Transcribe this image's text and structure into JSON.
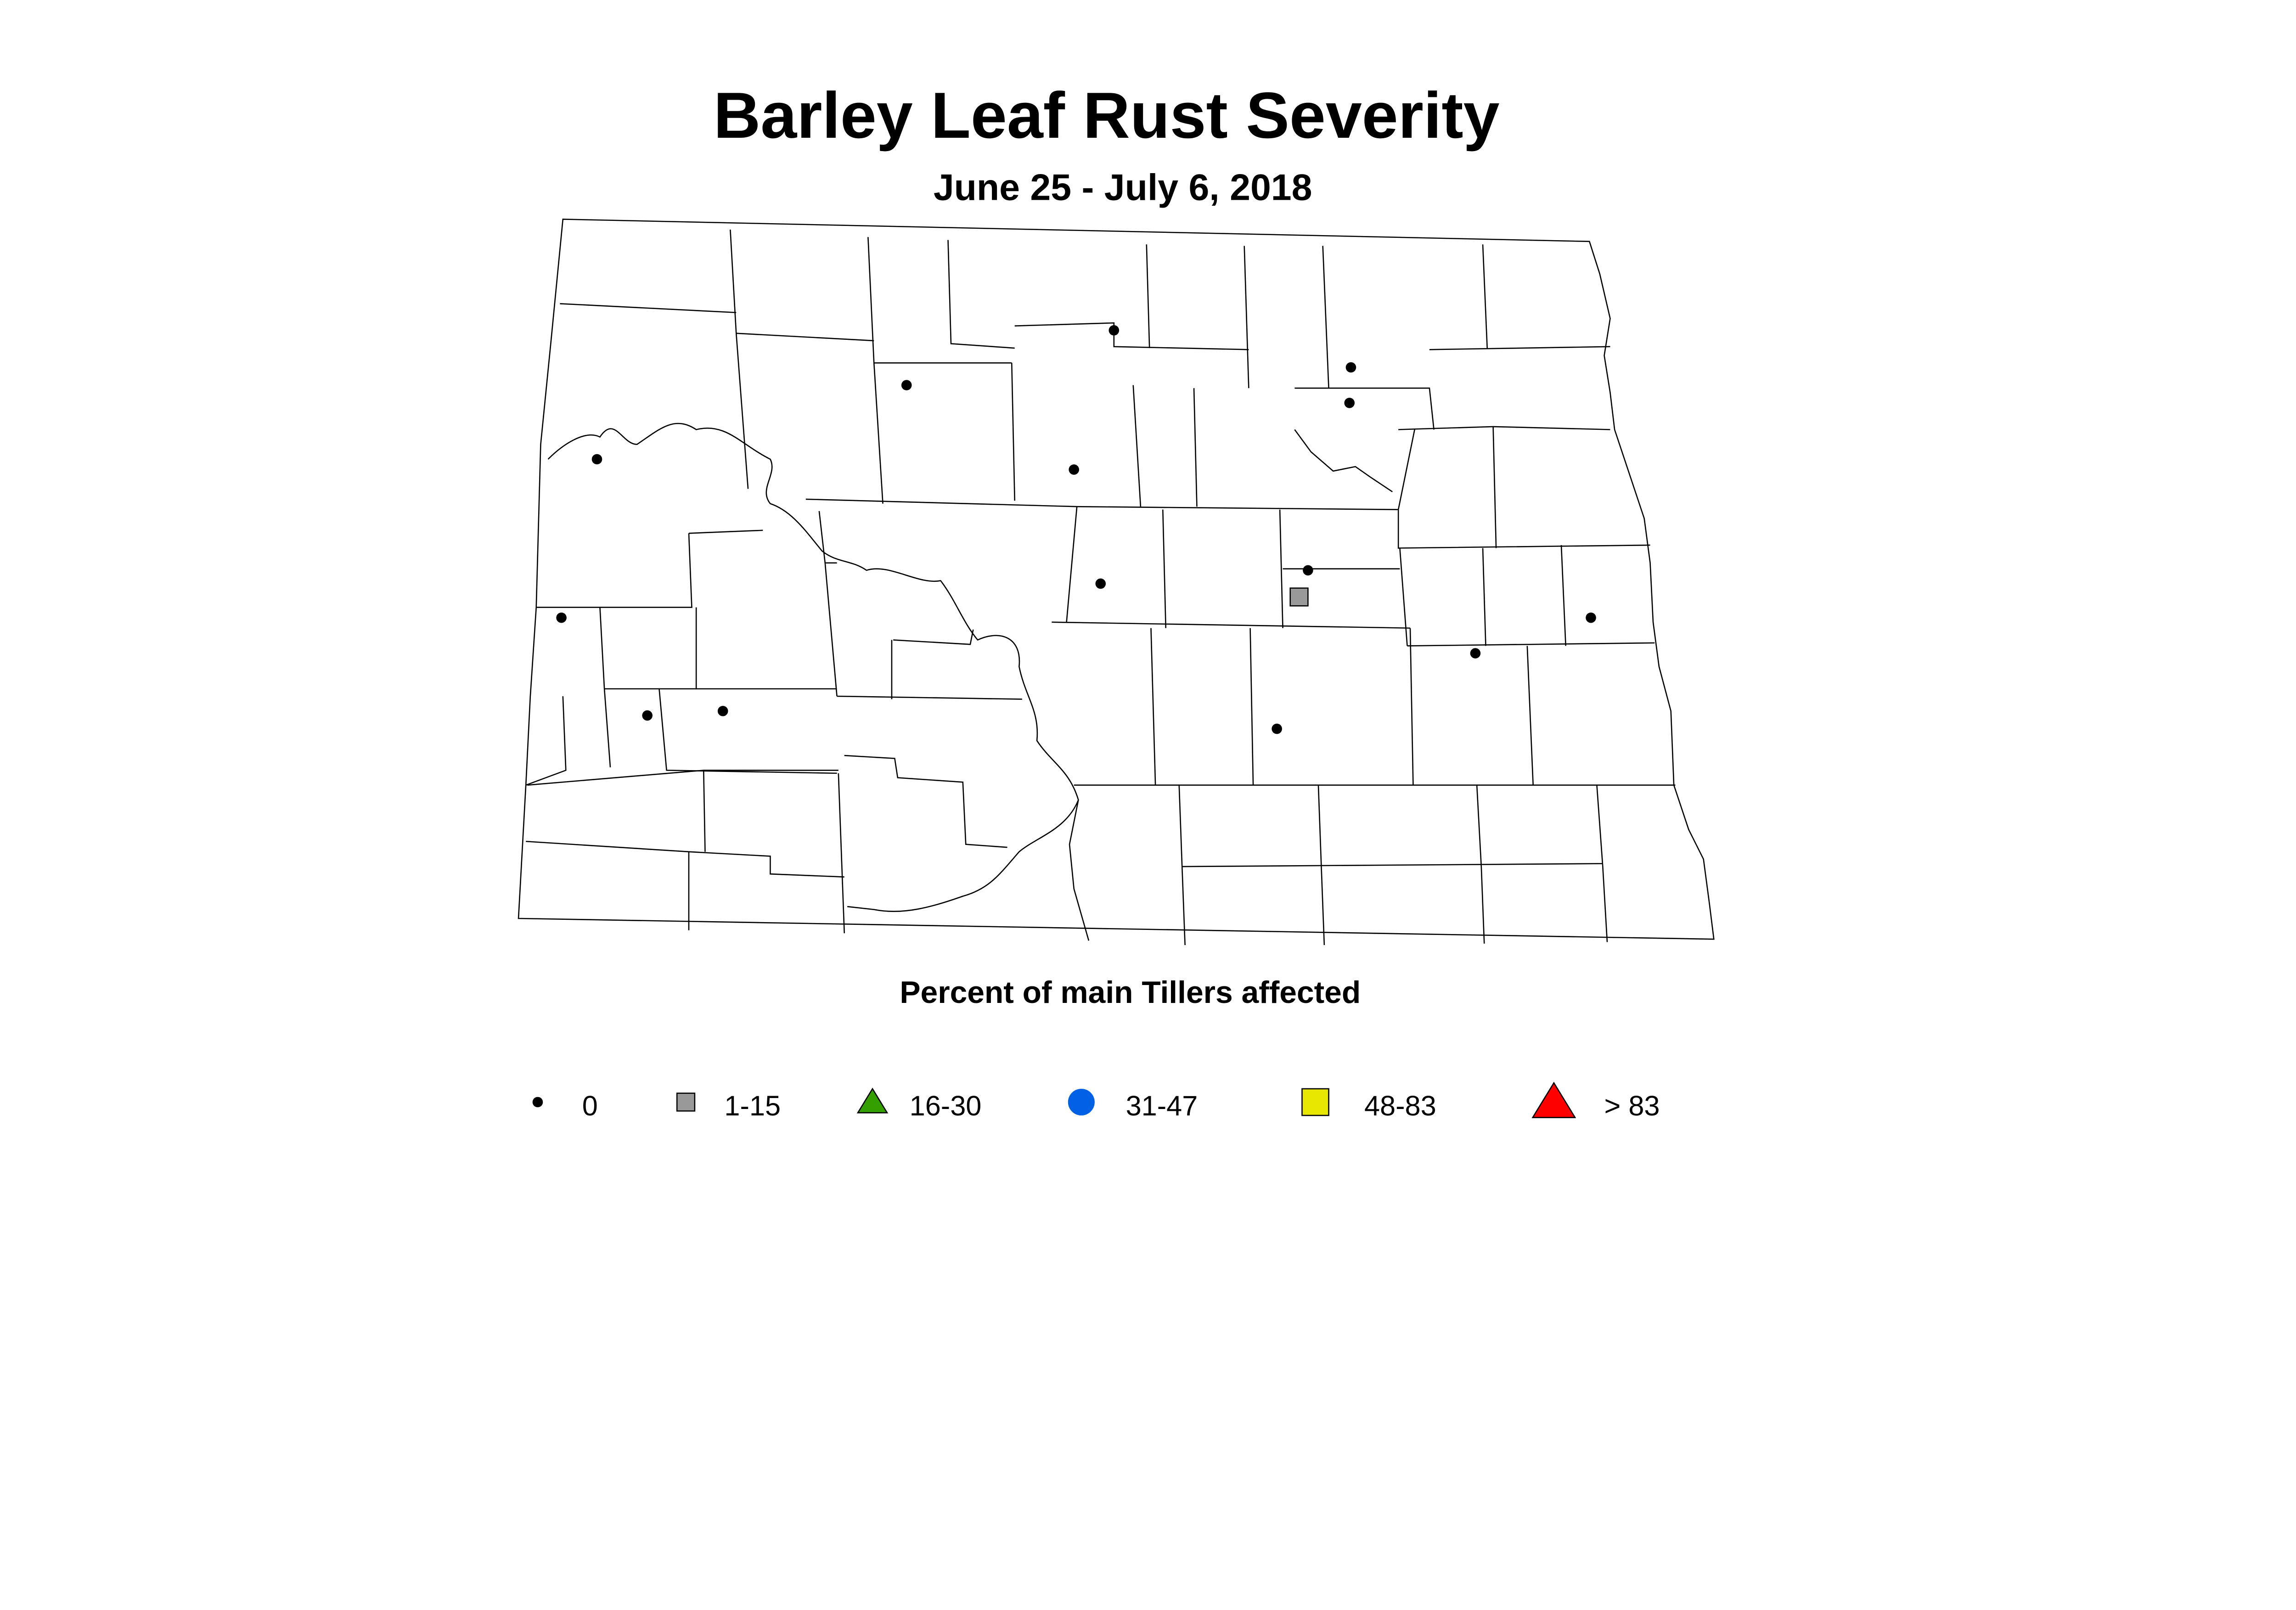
{
  "title": "Barley Leaf Rust Severity",
  "subtitle": "June 25 - July 6, 2018",
  "legend_title": "Percent of main Tillers affected",
  "legend": [
    {
      "label": "0",
      "shape": "dot",
      "color": "#000000"
    },
    {
      "label": "1-15",
      "shape": "square",
      "color": "#999999"
    },
    {
      "label": "16-30",
      "shape": "triangle",
      "color": "#33a000"
    },
    {
      "label": "31-47",
      "shape": "circle",
      "color": "#0060e6"
    },
    {
      "label": "48-83",
      "shape": "square",
      "color": "#e6e600"
    },
    {
      "label": "> 83",
      "shape": "triangle",
      "color": "#ff0000"
    }
  ],
  "observations": [
    {
      "category": "0"
    },
    {
      "category": "0"
    },
    {
      "category": "0"
    },
    {
      "category": "0"
    },
    {
      "category": "0"
    },
    {
      "category": "0"
    },
    {
      "category": "0"
    },
    {
      "category": "0"
    },
    {
      "category": "0"
    },
    {
      "category": "0"
    },
    {
      "category": "0"
    },
    {
      "category": "0"
    },
    {
      "category": "0"
    },
    {
      "category": "0"
    },
    {
      "category": "1-15"
    }
  ]
}
